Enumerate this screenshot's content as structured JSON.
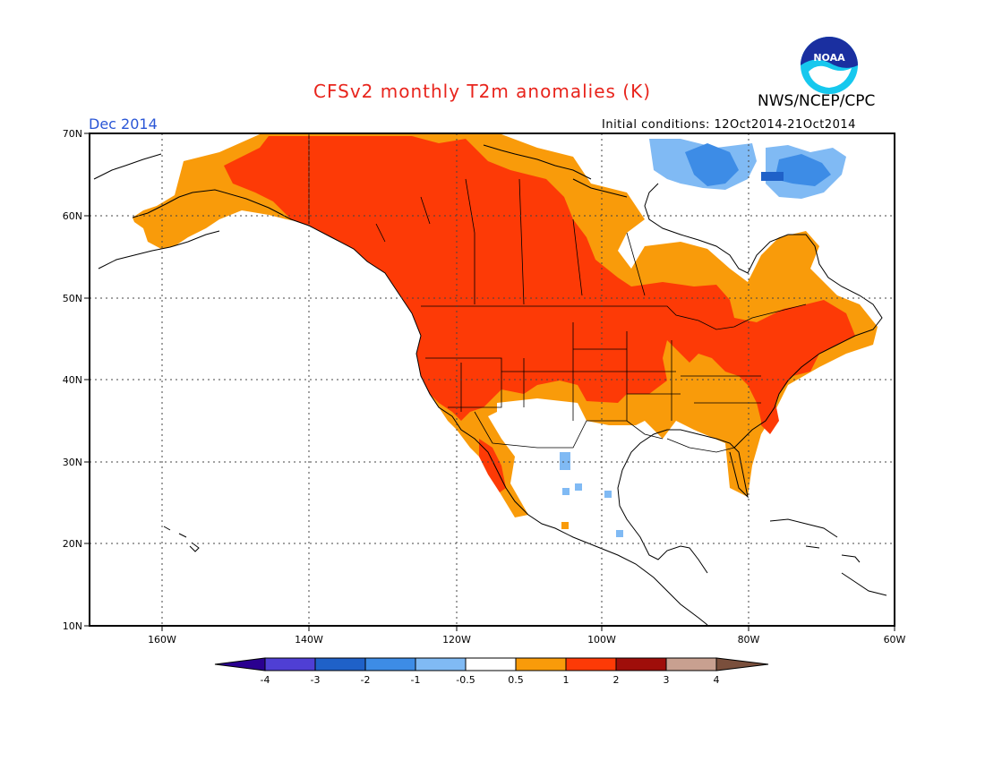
{
  "header": {
    "title": "CFSv2 monthly T2m anomalies (K)",
    "org": "NWS/NCEP/CPC",
    "valid_month": "Dec 2014",
    "initial_conditions": "Initial conditions: 12Oct2014-21Oct2014",
    "logo_text": "NOAA"
  },
  "map": {
    "lat_labels": [
      "70N",
      "60N",
      "50N",
      "40N",
      "30N",
      "20N",
      "10N"
    ],
    "lon_labels": [
      "160W",
      "140W",
      "120W",
      "100W",
      "80W",
      "60W"
    ],
    "colors": {
      "lt_m4": "#2a0090",
      "m4_m3": "#4f3fd4",
      "m3_m2": "#1f61c8",
      "m2_m1": "#3d8ce6",
      "m1_m05": "#80baf4",
      "neutral": "#ffffff",
      "p05_p1": "#f99b0a",
      "p1_p2": "#fd3a06",
      "p2_p3": "#9f0e0a",
      "p3_p4": "#c8a090",
      "gt_p4": "#7a4f3c"
    }
  },
  "colorbar": {
    "labels": [
      "-4",
      "-3",
      "-2",
      "-1",
      "-0.5",
      "0.5",
      "1",
      "2",
      "3",
      "4"
    ],
    "colors": [
      "#2a0090",
      "#4f3fd4",
      "#1f61c8",
      "#3d8ce6",
      "#80baf4",
      "#ffffff",
      "#f99b0a",
      "#fd3a06",
      "#9f0e0a",
      "#c8a090",
      "#7a4f3c"
    ]
  }
}
